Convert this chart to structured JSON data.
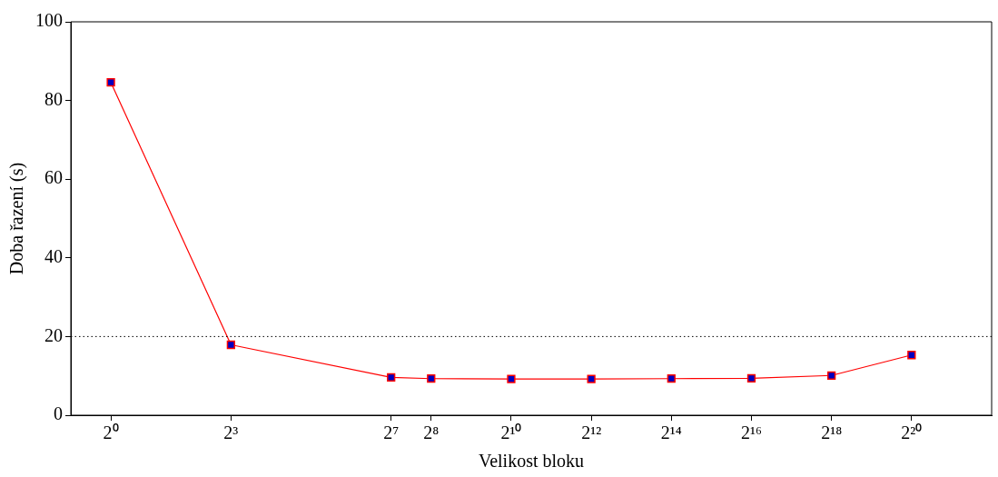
{
  "chart_data": {
    "type": "line",
    "xlabel": "Velikost bloku",
    "ylabel": "Doba řazení (s)",
    "x": [
      1,
      8,
      128,
      256,
      1024,
      4096,
      16384,
      65536,
      262144,
      1048576
    ],
    "series": [
      {
        "color": "#ff0000",
        "values": [
          84.6,
          17.9,
          9.6,
          9.3,
          9.2,
          9.2,
          9.3,
          9.4,
          10.1,
          15.3
        ]
      }
    ],
    "log": "x",
    "xlim": [
      0.5,
      4194304
    ],
    "xticks": [
      {
        "value": 1,
        "label": "2⁰"
      },
      {
        "value": 8,
        "label": "2³"
      },
      {
        "value": 128,
        "label": "2⁷"
      },
      {
        "value": 256,
        "label": "2⁸"
      },
      {
        "value": 1024,
        "label": "2¹⁰"
      },
      {
        "value": 4096,
        "label": "2¹²"
      },
      {
        "value": 16384,
        "label": "2¹⁴"
      },
      {
        "value": 65536,
        "label": "2¹⁶"
      },
      {
        "value": 262144,
        "label": "2¹⁸"
      },
      {
        "value": 1048576,
        "label": "2²⁰"
      }
    ],
    "ylim": [
      0,
      100
    ],
    "yticks": [
      0,
      20,
      40,
      60,
      80,
      100
    ],
    "ref_lines": [
      {
        "axis": "y",
        "value": 20,
        "color": "#000000",
        "line_style": "dotted"
      }
    ],
    "marker": "square",
    "line_style": "solid",
    "grid": false,
    "legend": false
  }
}
